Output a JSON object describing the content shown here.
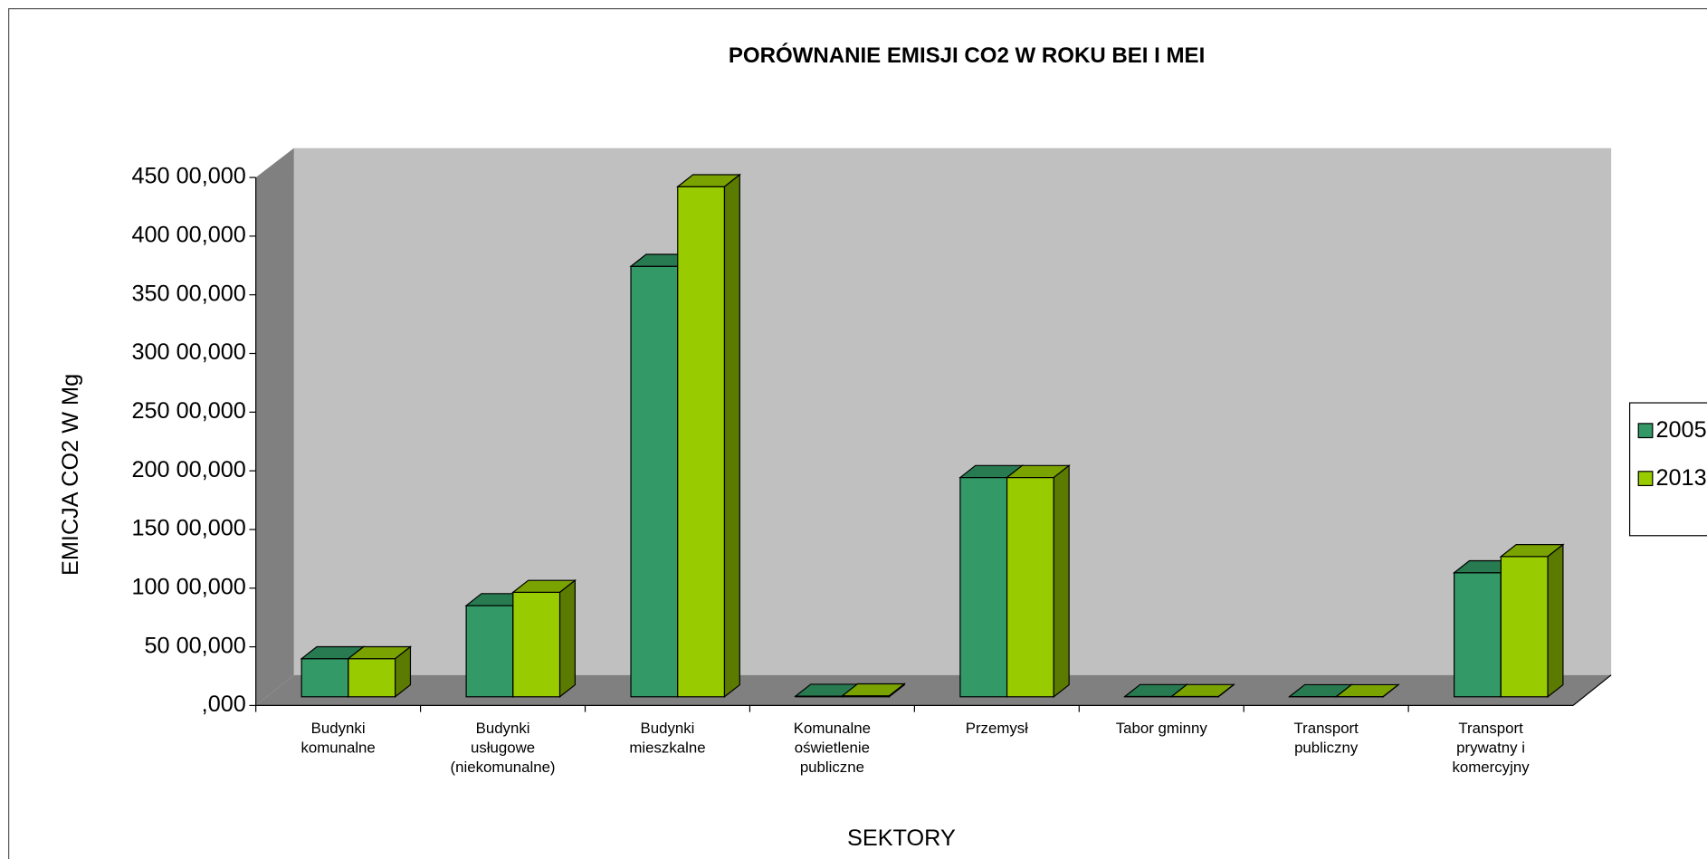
{
  "chart_data": {
    "type": "bar3d",
    "title": "PORÓWNANIE EMISJI CO2 W ROKU BEI I MEI",
    "y_label": "EMICJA CO2 W Mg",
    "x_label": "SEKTORY",
    "categories": [
      "Budynki komunalne",
      "Budynki usługowe (niekomunalne)",
      "Budynki mieszkalne",
      "Komunalne oświetlenie publiczne",
      "Przemysł",
      "Tabor gminny",
      "Transport publiczny",
      "Transport prywatny i komercyjny"
    ],
    "series": [
      {
        "name": "2005",
        "color": "#339966",
        "values": [
          3300,
          7900,
          37300,
          50,
          19000,
          20,
          10,
          10750
        ]
      },
      {
        "name": "2013",
        "color": "#99cc00",
        "values": [
          3300,
          9050,
          44200,
          80,
          19000,
          20,
          10,
          12150
        ]
      }
    ],
    "ylim": [
      0,
      45000
    ],
    "yticks": [
      {
        "value": 0,
        "label": ",000"
      },
      {
        "value": 5000,
        "label": "50 00,000"
      },
      {
        "value": 10000,
        "label": "100 00,000"
      },
      {
        "value": 15000,
        "label": "150 00,000"
      },
      {
        "value": 20000,
        "label": "200 00,000"
      },
      {
        "value": 25000,
        "label": "250 00,000"
      },
      {
        "value": 30000,
        "label": "300 00,000"
      },
      {
        "value": 35000,
        "label": "350 00,000"
      },
      {
        "value": 40000,
        "label": "400 00,000"
      },
      {
        "value": 45000,
        "label": "450 00,000"
      }
    ],
    "grid": true,
    "legend": "right"
  }
}
